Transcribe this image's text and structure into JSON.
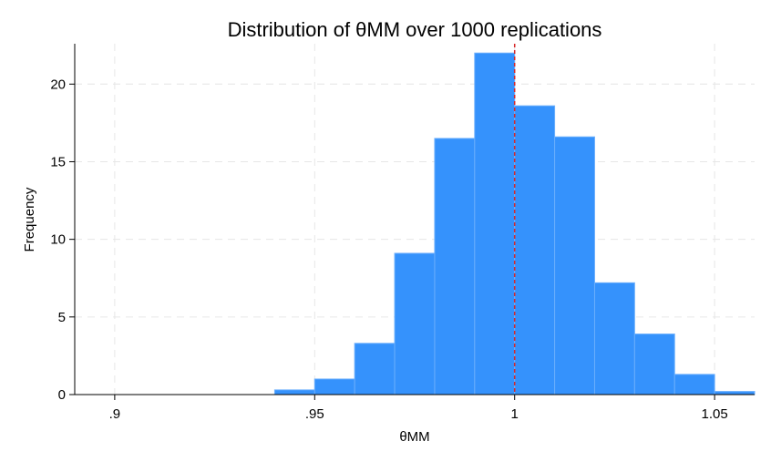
{
  "chart_data": {
    "type": "bar",
    "title": "Distribution of θMM over 1000 replications",
    "xlabel": "θMM",
    "ylabel": "Frequency",
    "xlim": [
      0.89,
      1.06
    ],
    "ylim": [
      0,
      22.6
    ],
    "x_ticks": [
      0.9,
      0.95,
      1,
      1.05
    ],
    "x_tick_labels": [
      ".9",
      ".95",
      "1",
      "1.05"
    ],
    "y_ticks": [
      0,
      5,
      10,
      15,
      20
    ],
    "y_tick_labels": [
      "0",
      "5",
      "10",
      "15",
      "20"
    ],
    "bin_width": 0.01,
    "bins": [
      {
        "start": 0.94,
        "end": 0.95,
        "value": 0.3
      },
      {
        "start": 0.95,
        "end": 0.96,
        "value": 1.0
      },
      {
        "start": 0.96,
        "end": 0.97,
        "value": 3.3
      },
      {
        "start": 0.97,
        "end": 0.98,
        "value": 9.1
      },
      {
        "start": 0.98,
        "end": 0.99,
        "value": 16.5
      },
      {
        "start": 0.99,
        "end": 1.0,
        "value": 22.0
      },
      {
        "start": 1.0,
        "end": 1.01,
        "value": 18.6
      },
      {
        "start": 1.01,
        "end": 1.02,
        "value": 16.6
      },
      {
        "start": 1.02,
        "end": 1.03,
        "value": 7.2
      },
      {
        "start": 1.03,
        "end": 1.04,
        "value": 3.9
      },
      {
        "start": 1.04,
        "end": 1.05,
        "value": 1.3
      },
      {
        "start": 1.05,
        "end": 1.06,
        "value": 0.2
      }
    ],
    "reference_line": {
      "x": 1.0,
      "style": "dashed",
      "color": "#d62728"
    },
    "grid": true,
    "colors": {
      "bar_fill": "#3592fc",
      "bar_edge": "#6aaefc",
      "grid": "#e6e6e6",
      "axis": "#000000"
    }
  }
}
